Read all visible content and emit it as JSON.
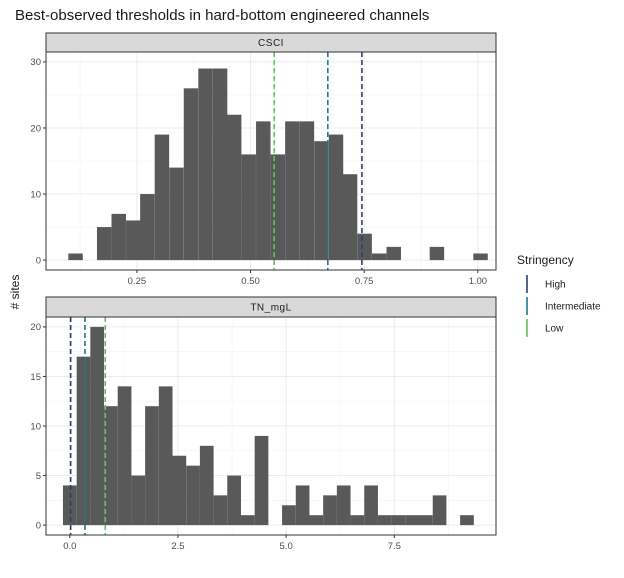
{
  "title": "Best-observed thresholds in hard-bottom engineered channels",
  "ylabel": "# sites",
  "legend": {
    "title": "Stringency",
    "items": [
      {
        "label": "High",
        "color": "#2c3f6e"
      },
      {
        "label": "Intermediate",
        "color": "#1f7a8c"
      },
      {
        "label": "Low",
        "color": "#5fc45a"
      }
    ]
  },
  "chart_data": [
    {
      "type": "bar",
      "panel": "CSCI",
      "xlim": [
        0.05,
        1.04
      ],
      "ylim": [
        -1.5,
        31.5
      ],
      "xticks": [
        0.25,
        0.5,
        0.75,
        1.0
      ],
      "xtick_labels": [
        "0.25",
        "0.50",
        "0.75",
        "1.00"
      ],
      "yticks": [
        0,
        10,
        20,
        30
      ],
      "binwidth": 0.0318,
      "bins": [
        {
          "x": 0.115,
          "count": 1
        },
        {
          "x": 0.178,
          "count": 5
        },
        {
          "x": 0.21,
          "count": 7
        },
        {
          "x": 0.242,
          "count": 6
        },
        {
          "x": 0.273,
          "count": 10
        },
        {
          "x": 0.305,
          "count": 19
        },
        {
          "x": 0.337,
          "count": 14
        },
        {
          "x": 0.369,
          "count": 26
        },
        {
          "x": 0.401,
          "count": 29
        },
        {
          "x": 0.433,
          "count": 29
        },
        {
          "x": 0.464,
          "count": 22
        },
        {
          "x": 0.496,
          "count": 16
        },
        {
          "x": 0.528,
          "count": 21
        },
        {
          "x": 0.56,
          "count": 16
        },
        {
          "x": 0.592,
          "count": 21
        },
        {
          "x": 0.624,
          "count": 21
        },
        {
          "x": 0.656,
          "count": 18
        },
        {
          "x": 0.688,
          "count": 19
        },
        {
          "x": 0.719,
          "count": 13
        },
        {
          "x": 0.751,
          "count": 4
        },
        {
          "x": 0.783,
          "count": 1
        },
        {
          "x": 0.815,
          "count": 2
        },
        {
          "x": 0.91,
          "count": 2
        },
        {
          "x": 1.006,
          "count": 1
        }
      ],
      "thresholds": [
        {
          "stringency": "High",
          "value": 0.745
        },
        {
          "stringency": "Intermediate",
          "value": 0.67
        },
        {
          "stringency": "Low",
          "value": 0.552
        }
      ]
    },
    {
      "type": "bar",
      "panel": "TN_mgL",
      "xlim": [
        -0.55,
        9.85
      ],
      "ylim": [
        -1.0,
        21.0
      ],
      "xticks": [
        0.0,
        2.5,
        5.0,
        7.5
      ],
      "xtick_labels": [
        "0.0",
        "2.5",
        "5.0",
        "7.5"
      ],
      "yticks": [
        0,
        5,
        10,
        15,
        20
      ],
      "binwidth": 0.3165,
      "bins": [
        {
          "x": 0.0,
          "count": 4
        },
        {
          "x": 0.317,
          "count": 17
        },
        {
          "x": 0.633,
          "count": 20
        },
        {
          "x": 0.95,
          "count": 12
        },
        {
          "x": 1.266,
          "count": 14
        },
        {
          "x": 1.583,
          "count": 5
        },
        {
          "x": 1.899,
          "count": 12
        },
        {
          "x": 2.216,
          "count": 14
        },
        {
          "x": 2.532,
          "count": 7
        },
        {
          "x": 2.849,
          "count": 6
        },
        {
          "x": 3.165,
          "count": 8
        },
        {
          "x": 3.482,
          "count": 3
        },
        {
          "x": 3.798,
          "count": 5
        },
        {
          "x": 4.115,
          "count": 1
        },
        {
          "x": 4.431,
          "count": 9
        },
        {
          "x": 4.748,
          "count": 0
        },
        {
          "x": 5.064,
          "count": 2
        },
        {
          "x": 5.381,
          "count": 4
        },
        {
          "x": 5.697,
          "count": 1
        },
        {
          "x": 6.014,
          "count": 3
        },
        {
          "x": 6.33,
          "count": 4
        },
        {
          "x": 6.647,
          "count": 1
        },
        {
          "x": 6.963,
          "count": 4
        },
        {
          "x": 7.28,
          "count": 1
        },
        {
          "x": 7.596,
          "count": 1
        },
        {
          "x": 7.913,
          "count": 1
        },
        {
          "x": 8.229,
          "count": 1
        },
        {
          "x": 8.546,
          "count": 3
        },
        {
          "x": 8.862,
          "count": 0
        },
        {
          "x": 9.179,
          "count": 1
        }
      ],
      "thresholds": [
        {
          "stringency": "High",
          "value": 0.02
        },
        {
          "stringency": "Intermediate",
          "value": 0.35
        },
        {
          "stringency": "Low",
          "value": 0.82
        }
      ]
    }
  ]
}
